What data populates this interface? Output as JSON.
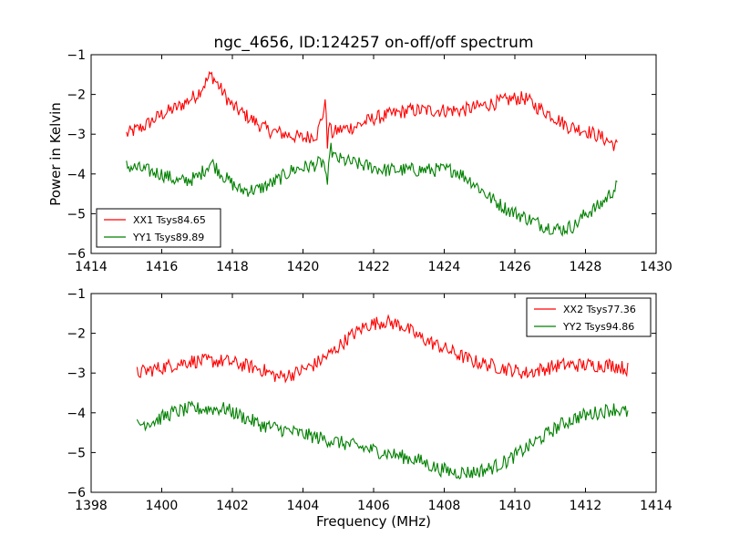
{
  "chart_data": [
    {
      "type": "line",
      "title": "ngc_4656, ID:124257 on-off/off spectrum",
      "xlabel": "",
      "ylabel": "Power in Kelvin",
      "xlim": [
        1414,
        1430
      ],
      "ylim": [
        -6,
        -1
      ],
      "xticks": [
        "1414",
        "1416",
        "1418",
        "1420",
        "1422",
        "1424",
        "1426",
        "1428",
        "1430"
      ],
      "yticks": [
        "−6",
        "−5",
        "−4",
        "−3",
        "−2",
        "−1"
      ],
      "legend_position": "lower-left",
      "grid": false,
      "series": [
        {
          "name": "XX1 Tsys84.65",
          "color": "#ff0000",
          "x": [
            1415.0,
            1415.5,
            1416.0,
            1416.5,
            1417.0,
            1417.4,
            1417.7,
            1418.0,
            1418.5,
            1419.0,
            1419.5,
            1420.0,
            1420.4,
            1420.65,
            1420.7,
            1420.75,
            1420.8,
            1421.0,
            1421.5,
            1422.0,
            1422.5,
            1423.0,
            1423.5,
            1424.0,
            1424.5,
            1425.0,
            1425.5,
            1426.0,
            1426.3,
            1426.6,
            1427.0,
            1427.5,
            1428.0,
            1428.5,
            1428.9
          ],
          "y": [
            -3.0,
            -2.8,
            -2.5,
            -2.3,
            -2.0,
            -1.5,
            -1.9,
            -2.3,
            -2.6,
            -2.9,
            -3.0,
            -3.1,
            -3.0,
            -2.2,
            -3.4,
            -2.6,
            -3.0,
            -2.9,
            -2.8,
            -2.6,
            -2.5,
            -2.4,
            -2.4,
            -2.4,
            -2.4,
            -2.3,
            -2.2,
            -2.1,
            -2.1,
            -2.3,
            -2.5,
            -2.8,
            -2.9,
            -3.1,
            -3.3
          ]
        },
        {
          "name": "YY1 Tsys89.89",
          "color": "#008000",
          "x": [
            1415.0,
            1415.5,
            1416.0,
            1416.5,
            1417.0,
            1417.4,
            1417.8,
            1418.2,
            1418.7,
            1419.2,
            1419.7,
            1420.2,
            1420.6,
            1420.7,
            1420.75,
            1420.9,
            1421.3,
            1421.8,
            1422.3,
            1422.8,
            1423.3,
            1423.8,
            1424.3,
            1424.8,
            1425.3,
            1425.8,
            1426.3,
            1426.8,
            1427.3,
            1427.7,
            1428.0,
            1428.4,
            1428.9
          ],
          "y": [
            -3.8,
            -3.9,
            -4.0,
            -4.2,
            -4.1,
            -3.7,
            -4.1,
            -4.4,
            -4.4,
            -4.2,
            -3.9,
            -3.8,
            -3.7,
            -4.5,
            -3.3,
            -3.6,
            -3.7,
            -3.8,
            -3.9,
            -3.9,
            -3.9,
            -3.9,
            -3.9,
            -4.2,
            -4.6,
            -4.9,
            -5.1,
            -5.3,
            -5.4,
            -5.3,
            -5.0,
            -4.8,
            -4.3
          ]
        }
      ]
    },
    {
      "type": "line",
      "title": "",
      "xlabel": "Frequency (MHz)",
      "ylabel": "",
      "xlim": [
        1398,
        1414
      ],
      "ylim": [
        -6,
        -1
      ],
      "xticks": [
        "1398",
        "1400",
        "1402",
        "1404",
        "1406",
        "1408",
        "1410",
        "1412",
        "1414"
      ],
      "yticks": [
        "−6",
        "−5",
        "−4",
        "−3",
        "−2",
        "−1"
      ],
      "legend_position": "upper-right",
      "grid": false,
      "series": [
        {
          "name": "XX2 Tsys77.36",
          "color": "#ff0000",
          "x": [
            1399.3,
            1399.8,
            1400.3,
            1400.8,
            1401.3,
            1401.8,
            1402.3,
            1402.8,
            1403.3,
            1403.8,
            1404.3,
            1404.8,
            1405.3,
            1405.8,
            1406.3,
            1406.8,
            1407.3,
            1407.8,
            1408.3,
            1408.8,
            1409.3,
            1409.8,
            1410.3,
            1410.8,
            1411.3,
            1411.8,
            1412.3,
            1412.8,
            1413.2
          ],
          "y": [
            -3.0,
            -2.9,
            -2.8,
            -2.7,
            -2.7,
            -2.7,
            -2.8,
            -2.9,
            -3.1,
            -3.0,
            -2.8,
            -2.5,
            -2.1,
            -1.8,
            -1.7,
            -1.8,
            -2.1,
            -2.3,
            -2.5,
            -2.7,
            -2.8,
            -2.9,
            -3.0,
            -2.9,
            -2.8,
            -2.8,
            -2.8,
            -2.8,
            -2.9
          ]
        },
        {
          "name": "YY2 Tsys94.86",
          "color": "#008000",
          "x": [
            1399.3,
            1399.8,
            1400.3,
            1400.8,
            1401.3,
            1401.8,
            1402.3,
            1402.8,
            1403.3,
            1403.8,
            1404.3,
            1404.8,
            1405.3,
            1405.8,
            1406.3,
            1406.8,
            1407.3,
            1407.8,
            1408.3,
            1408.8,
            1409.3,
            1409.8,
            1410.3,
            1410.8,
            1411.3,
            1411.8,
            1412.3,
            1412.8,
            1413.2
          ],
          "y": [
            -4.3,
            -4.2,
            -4.0,
            -3.9,
            -3.9,
            -3.9,
            -4.1,
            -4.3,
            -4.4,
            -4.5,
            -4.6,
            -4.7,
            -4.8,
            -4.9,
            -5.0,
            -5.1,
            -5.2,
            -5.4,
            -5.5,
            -5.5,
            -5.4,
            -5.2,
            -4.9,
            -4.6,
            -4.3,
            -4.1,
            -4.0,
            -3.9,
            -4.0
          ]
        }
      ]
    }
  ]
}
